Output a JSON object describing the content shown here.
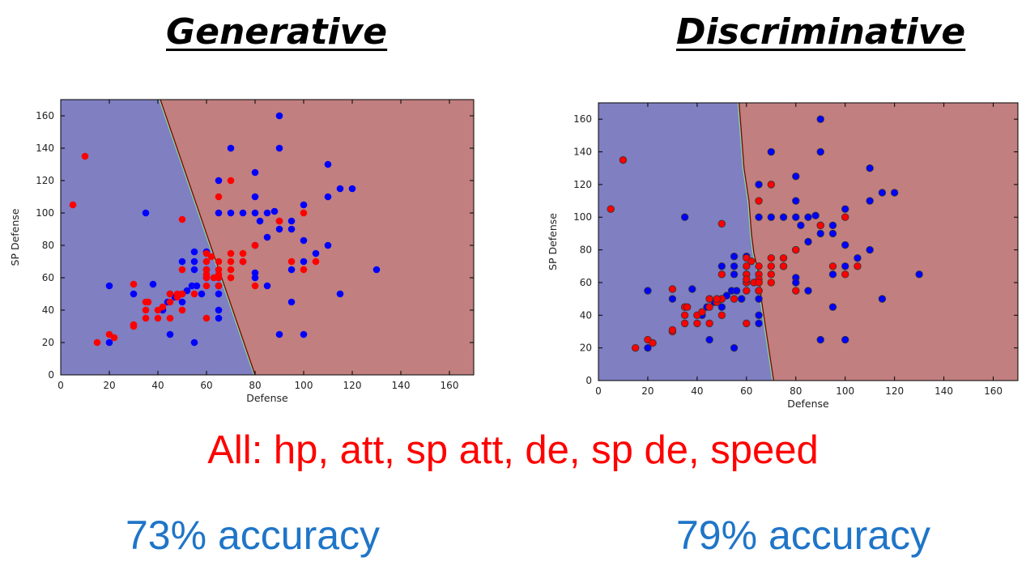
{
  "headings": {
    "generative": "Generative",
    "discriminative": "Discriminative"
  },
  "subtitle": "All: hp, att, sp att, de, sp de, speed",
  "accuracy": {
    "generative": "73% accuracy",
    "discriminative": "79% accuracy"
  },
  "colors": {
    "class_blue_region": "#7f7fc1",
    "class_red_region": "#c17f7f",
    "blue_point": "#0000ff",
    "red_point": "#ff0000",
    "accuracy_text": "#1f75c8",
    "subtitle_text": "#ff0000"
  },
  "chart_data": [
    {
      "type": "scatter",
      "name": "generative",
      "xlabel": "Defense",
      "ylabel": "SP Defense",
      "xlim": [
        0,
        170
      ],
      "ylim": [
        0,
        170
      ],
      "xticks": [
        0,
        20,
        40,
        60,
        80,
        100,
        120,
        140,
        160
      ],
      "yticks": [
        0,
        20,
        40,
        60,
        80,
        100,
        120,
        140,
        160
      ],
      "boundary": [
        [
          41,
          170
        ],
        [
          80,
          0
        ]
      ],
      "series": [
        {
          "color": "blue",
          "points": [
            [
              90,
              160
            ],
            [
              70,
              140
            ],
            [
              90,
              140
            ],
            [
              80,
              125
            ],
            [
              110,
              130
            ],
            [
              65,
              120
            ],
            [
              115,
              115
            ],
            [
              120,
              115
            ],
            [
              75,
              100
            ],
            [
              35,
              100
            ],
            [
              65,
              100
            ],
            [
              70,
              100
            ],
            [
              80,
              100
            ],
            [
              80,
              110
            ],
            [
              85,
              100
            ],
            [
              88,
              101
            ],
            [
              90,
              95
            ],
            [
              95,
              95
            ],
            [
              95,
              90
            ],
            [
              100,
              105
            ],
            [
              110,
              110
            ],
            [
              82,
              95
            ],
            [
              85,
              85
            ],
            [
              90,
              90
            ],
            [
              100,
              83
            ],
            [
              110,
              80
            ],
            [
              80,
              80
            ],
            [
              55,
              76
            ],
            [
              60,
              76
            ],
            [
              50,
              70
            ],
            [
              55,
              70
            ],
            [
              55,
              65
            ],
            [
              60,
              65
            ],
            [
              60,
              60
            ],
            [
              65,
              60
            ],
            [
              65,
              55
            ],
            [
              75,
              70
            ],
            [
              80,
              63
            ],
            [
              80,
              60
            ],
            [
              95,
              65
            ],
            [
              100,
              70
            ],
            [
              105,
              75
            ],
            [
              130,
              65
            ],
            [
              20,
              55
            ],
            [
              30,
              50
            ],
            [
              38,
              56
            ],
            [
              45,
              50
            ],
            [
              47,
              48
            ],
            [
              50,
              50
            ],
            [
              52,
              52
            ],
            [
              54,
              55
            ],
            [
              56,
              55
            ],
            [
              58,
              50
            ],
            [
              65,
              55
            ],
            [
              65,
              50
            ],
            [
              50,
              45
            ],
            [
              42,
              40
            ],
            [
              44,
              45
            ],
            [
              65,
              40
            ],
            [
              65,
              35
            ],
            [
              45,
              25
            ],
            [
              55,
              20
            ],
            [
              20,
              20
            ],
            [
              90,
              25
            ],
            [
              100,
              25
            ],
            [
              85,
              55
            ],
            [
              95,
              45
            ],
            [
              115,
              50
            ]
          ]
        },
        {
          "color": "red",
          "points": [
            [
              10,
              135
            ],
            [
              5,
              105
            ],
            [
              70,
              120
            ],
            [
              65,
              110
            ],
            [
              50,
              96
            ],
            [
              90,
              95
            ],
            [
              100,
              100
            ],
            [
              60,
              75
            ],
            [
              62,
              73
            ],
            [
              65,
              70
            ],
            [
              70,
              75
            ],
            [
              75,
              75
            ],
            [
              80,
              80
            ],
            [
              70,
              70
            ],
            [
              75,
              70
            ],
            [
              60,
              70
            ],
            [
              60,
              65
            ],
            [
              65,
              65
            ],
            [
              63,
              60
            ],
            [
              65,
              62
            ],
            [
              60,
              60
            ],
            [
              50,
              65
            ],
            [
              70,
              65
            ],
            [
              70,
              60
            ],
            [
              100,
              65
            ],
            [
              105,
              70
            ],
            [
              95,
              70
            ],
            [
              80,
              55
            ],
            [
              60,
              55
            ],
            [
              55,
              50
            ],
            [
              48,
              48
            ],
            [
              50,
              50
            ],
            [
              30,
              56
            ],
            [
              35,
              45
            ],
            [
              36,
              45
            ],
            [
              35,
              40
            ],
            [
              40,
              40
            ],
            [
              42,
              42
            ],
            [
              45,
              45
            ],
            [
              45,
              50
            ],
            [
              48,
              50
            ],
            [
              40,
              35
            ],
            [
              35,
              35
            ],
            [
              45,
              35
            ],
            [
              50,
              40
            ],
            [
              60,
              35
            ],
            [
              30,
              30
            ],
            [
              30,
              31
            ],
            [
              20,
              25
            ],
            [
              22,
              23
            ],
            [
              15,
              20
            ],
            [
              65,
              60
            ],
            [
              65,
              55
            ],
            [
              60,
              62
            ]
          ]
        }
      ]
    },
    {
      "type": "scatter",
      "name": "discriminative",
      "xlabel": "Defense",
      "ylabel": "SP Defense",
      "xlim": [
        0,
        170
      ],
      "ylim": [
        0,
        170
      ],
      "xticks": [
        0,
        20,
        40,
        60,
        80,
        100,
        120,
        140,
        160
      ],
      "yticks": [
        0,
        20,
        40,
        60,
        80,
        100,
        120,
        140,
        160
      ],
      "boundary": [
        [
          57,
          170
        ],
        [
          59,
          130
        ],
        [
          61,
          110
        ],
        [
          62,
          90
        ],
        [
          63,
          78
        ],
        [
          65,
          65
        ],
        [
          66,
          50
        ],
        [
          68,
          30
        ],
        [
          70,
          10
        ],
        [
          71,
          0
        ]
      ],
      "series": [
        {
          "color": "blue",
          "points": [
            [
              90,
              160
            ],
            [
              70,
              140
            ],
            [
              90,
              140
            ],
            [
              80,
              125
            ],
            [
              110,
              130
            ],
            [
              65,
              120
            ],
            [
              115,
              115
            ],
            [
              120,
              115
            ],
            [
              75,
              100
            ],
            [
              35,
              100
            ],
            [
              65,
              100
            ],
            [
              70,
              100
            ],
            [
              80,
              100
            ],
            [
              80,
              110
            ],
            [
              85,
              100
            ],
            [
              88,
              101
            ],
            [
              90,
              95
            ],
            [
              95,
              95
            ],
            [
              95,
              90
            ],
            [
              100,
              105
            ],
            [
              110,
              110
            ],
            [
              82,
              95
            ],
            [
              85,
              85
            ],
            [
              90,
              90
            ],
            [
              100,
              83
            ],
            [
              110,
              80
            ],
            [
              80,
              80
            ],
            [
              55,
              76
            ],
            [
              60,
              76
            ],
            [
              50,
              70
            ],
            [
              55,
              70
            ],
            [
              55,
              65
            ],
            [
              60,
              65
            ],
            [
              60,
              60
            ],
            [
              65,
              60
            ],
            [
              65,
              55
            ],
            [
              75,
              70
            ],
            [
              80,
              63
            ],
            [
              80,
              60
            ],
            [
              95,
              65
            ],
            [
              100,
              70
            ],
            [
              105,
              75
            ],
            [
              130,
              65
            ],
            [
              20,
              55
            ],
            [
              30,
              50
            ],
            [
              38,
              56
            ],
            [
              45,
              50
            ],
            [
              47,
              48
            ],
            [
              50,
              50
            ],
            [
              52,
              52
            ],
            [
              54,
              55
            ],
            [
              56,
              55
            ],
            [
              58,
              50
            ],
            [
              65,
              55
            ],
            [
              65,
              50
            ],
            [
              50,
              45
            ],
            [
              42,
              40
            ],
            [
              44,
              45
            ],
            [
              65,
              40
            ],
            [
              65,
              35
            ],
            [
              45,
              25
            ],
            [
              55,
              20
            ],
            [
              20,
              20
            ],
            [
              90,
              25
            ],
            [
              100,
              25
            ],
            [
              85,
              55
            ],
            [
              95,
              45
            ],
            [
              115,
              50
            ]
          ]
        },
        {
          "color": "red",
          "points": [
            [
              10,
              135
            ],
            [
              5,
              105
            ],
            [
              70,
              120
            ],
            [
              65,
              110
            ],
            [
              50,
              96
            ],
            [
              90,
              95
            ],
            [
              100,
              100
            ],
            [
              60,
              75
            ],
            [
              62,
              73
            ],
            [
              65,
              70
            ],
            [
              70,
              75
            ],
            [
              75,
              75
            ],
            [
              80,
              80
            ],
            [
              70,
              70
            ],
            [
              75,
              70
            ],
            [
              60,
              70
            ],
            [
              60,
              65
            ],
            [
              65,
              65
            ],
            [
              63,
              60
            ],
            [
              65,
              62
            ],
            [
              60,
              60
            ],
            [
              50,
              65
            ],
            [
              70,
              65
            ],
            [
              70,
              60
            ],
            [
              100,
              65
            ],
            [
              105,
              70
            ],
            [
              95,
              70
            ],
            [
              80,
              55
            ],
            [
              60,
              55
            ],
            [
              55,
              50
            ],
            [
              48,
              48
            ],
            [
              50,
              50
            ],
            [
              30,
              56
            ],
            [
              35,
              45
            ],
            [
              36,
              45
            ],
            [
              35,
              40
            ],
            [
              40,
              40
            ],
            [
              42,
              42
            ],
            [
              45,
              45
            ],
            [
              45,
              50
            ],
            [
              48,
              50
            ],
            [
              40,
              35
            ],
            [
              35,
              35
            ],
            [
              45,
              35
            ],
            [
              50,
              40
            ],
            [
              60,
              35
            ],
            [
              30,
              30
            ],
            [
              30,
              31
            ],
            [
              20,
              25
            ],
            [
              22,
              23
            ],
            [
              15,
              20
            ],
            [
              65,
              60
            ],
            [
              65,
              55
            ],
            [
              60,
              62
            ]
          ]
        }
      ]
    }
  ]
}
